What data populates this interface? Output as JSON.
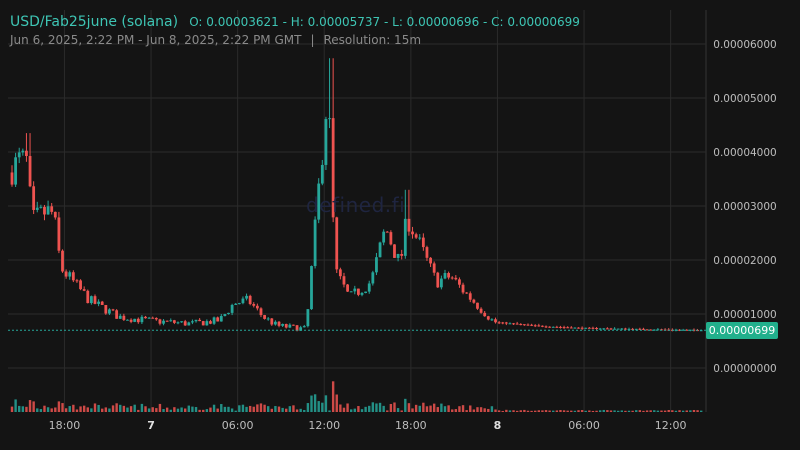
{
  "header": {
    "pair": "USD/Fab25june (solana)",
    "ohlc": "O: 0.00003621 - H: 0.00005737 - L: 0.00000696 - C: 0.00000699",
    "range": "Jun 6, 2025, 2:22 PM - Jun 8, 2025, 2:22 PM GMT",
    "separator": "|",
    "resolution": "Resolution: 15m"
  },
  "watermark": "defined.fi",
  "current_price_label": "0.00000699",
  "colors": {
    "up": "#26a69a",
    "down": "#ef5350",
    "price_line": "#26a69a",
    "grid": "#2b2b2b",
    "background": "#141414"
  },
  "chart_data": {
    "type": "candlestick",
    "resolution": "15m",
    "y_ticks": [
      "0.00006000",
      "0.00005000",
      "0.00004000",
      "0.00003000",
      "0.00002000",
      "0.00001000",
      "0.00000000"
    ],
    "ylim": [
      0,
      6e-05
    ],
    "x_ticks": [
      "18:00",
      "7",
      "06:00",
      "12:00",
      "18:00",
      "8",
      "06:00",
      "12:00"
    ],
    "bold_x_ticks": [
      "7",
      "8"
    ],
    "last_price": 6.99e-06,
    "ohlc": {
      "open": 3.621e-05,
      "high": 5.737e-05,
      "low": 6.96e-06,
      "close": 6.99e-06
    },
    "price_path": [
      {
        "t": "06-06 14:22",
        "p": 3.62e-05
      },
      {
        "t": "06-06 15:10",
        "p": 3.85e-05
      },
      {
        "t": "06-06 15:40",
        "p": 3.8e-05
      },
      {
        "t": "06-06 16:00",
        "p": 2.72e-05
      },
      {
        "t": "06-06 17:00",
        "p": 2.9e-05
      },
      {
        "t": "06-06 17:30",
        "p": 2.85e-05
      },
      {
        "t": "06-06 18:00",
        "p": 1.85e-05
      },
      {
        "t": "06-06 19:00",
        "p": 1.55e-05
      },
      {
        "t": "06-06 20:00",
        "p": 1.25e-05
      },
      {
        "t": "06-06 22:00",
        "p": 9.5e-06
      },
      {
        "t": "06-07 00:00",
        "p": 8.8e-06
      },
      {
        "t": "06-07 03:00",
        "p": 8.2e-06
      },
      {
        "t": "06-07 05:00",
        "p": 8.8e-06
      },
      {
        "t": "06-07 06:00",
        "p": 1.2e-05
      },
      {
        "t": "06-07 07:00",
        "p": 1.25e-05
      },
      {
        "t": "06-07 08:00",
        "p": 9.5e-06
      },
      {
        "t": "06-07 09:00",
        "p": 7.8e-06
      },
      {
        "t": "06-07 11:00",
        "p": 7.2e-06
      },
      {
        "t": "06-07 12:30",
        "p": 5.2e-05
      },
      {
        "t": "06-07 13:00",
        "p": 1.8e-05
      },
      {
        "t": "06-07 14:00",
        "p": 1.3e-05
      },
      {
        "t": "06-07 15:30",
        "p": 1.6e-05
      },
      {
        "t": "06-07 16:30",
        "p": 2.6e-05
      },
      {
        "t": "06-07 17:30",
        "p": 1.9e-05
      },
      {
        "t": "06-07 18:00",
        "p": 2.8e-05
      },
      {
        "t": "06-07 19:00",
        "p": 2.2e-05
      },
      {
        "t": "06-07 20:00",
        "p": 1.6e-05
      },
      {
        "t": "06-07 21:00",
        "p": 1.7e-05
      },
      {
        "t": "06-07 22:00",
        "p": 1.4e-05
      },
      {
        "t": "06-08 00:00",
        "p": 8.5e-06
      },
      {
        "t": "06-08 03:00",
        "p": 7.8e-06
      },
      {
        "t": "06-08 06:00",
        "p": 7.4e-06
      },
      {
        "t": "06-08 12:00",
        "p": 7.1e-06
      },
      {
        "t": "06-08 14:22",
        "p": 6.99e-06
      }
    ],
    "spike_highs": [
      {
        "t": "06-06 15:30",
        "high": 4.35e-05
      },
      {
        "t": "06-07 12:30",
        "high": 5.737e-05
      },
      {
        "t": "06-07 17:45",
        "high": 3.3e-05
      }
    ]
  }
}
